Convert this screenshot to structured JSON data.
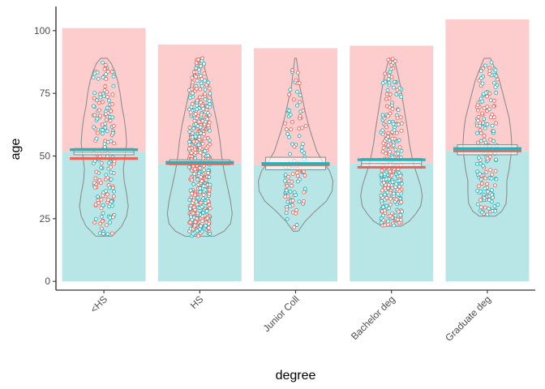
{
  "chart_data": {
    "type": "bar",
    "description_layers": [
      "stacked-bar",
      "violin",
      "jitter-points",
      "crossbar",
      "mean-lines"
    ],
    "xlabel": "degree",
    "ylabel": "age",
    "categories": [
      "<HS",
      "HS",
      "Junior Coll",
      "Bachelor deg",
      "Graduate deg"
    ],
    "ylim": [
      0,
      105
    ],
    "yticks": [
      0,
      25,
      50,
      75,
      100
    ],
    "grid": false,
    "legend": "none",
    "series": [
      {
        "key": "lower",
        "values": [
          51.5,
          47,
          46.5,
          47,
          52
        ],
        "color": "#b8e6e6"
      },
      {
        "key": "upper",
        "values": [
          49.5,
          47.5,
          46.5,
          47,
          52.5
        ],
        "color": "#fdcccc"
      }
    ],
    "totals": [
      101,
      94.5,
      93,
      94,
      104.5
    ],
    "crossbar": [
      {
        "low": 50.5,
        "mid": 51.5,
        "high": 53
      },
      {
        "low": 46.5,
        "mid": 47.2,
        "high": 48.5
      },
      {
        "low": 44.5,
        "mid": 46.5,
        "high": 49.5
      },
      {
        "low": 45.5,
        "mid": 47,
        "high": 49
      },
      {
        "low": 50.5,
        "mid": 52,
        "high": 54.5
      }
    ],
    "means": [
      {
        "teal": 52.5,
        "red": 49
      },
      {
        "teal": 47.5,
        "red": 47
      },
      {
        "teal": 47,
        "red": 46.5
      },
      {
        "teal": 48.5,
        "red": 45.5
      },
      {
        "teal": 53,
        "red": 52
      }
    ],
    "violin": [
      {
        "ymin": 18,
        "ymax": 89,
        "profile": [
          [
            18,
            10
          ],
          [
            22,
            22
          ],
          [
            26,
            28
          ],
          [
            30,
            30
          ],
          [
            35,
            28
          ],
          [
            40,
            25
          ],
          [
            45,
            24
          ],
          [
            50,
            26
          ],
          [
            55,
            28
          ],
          [
            60,
            27
          ],
          [
            65,
            25
          ],
          [
            70,
            22
          ],
          [
            75,
            20
          ],
          [
            80,
            17
          ],
          [
            84,
            13
          ],
          [
            87,
            9
          ],
          [
            89,
            4
          ]
        ]
      },
      {
        "ymin": 18,
        "ymax": 89,
        "profile": [
          [
            18,
            18
          ],
          [
            20,
            30
          ],
          [
            23,
            38
          ],
          [
            27,
            40
          ],
          [
            32,
            38
          ],
          [
            38,
            34
          ],
          [
            44,
            30
          ],
          [
            50,
            27
          ],
          [
            56,
            25
          ],
          [
            62,
            22
          ],
          [
            68,
            18
          ],
          [
            74,
            14
          ],
          [
            80,
            10
          ],
          [
            85,
            6
          ],
          [
            89,
            3
          ]
        ]
      },
      {
        "ymin": 20,
        "ymax": 89,
        "profile": [
          [
            20,
            3
          ],
          [
            24,
            12
          ],
          [
            28,
            24
          ],
          [
            32,
            38
          ],
          [
            36,
            45
          ],
          [
            40,
            46
          ],
          [
            44,
            42
          ],
          [
            48,
            33
          ],
          [
            52,
            26
          ],
          [
            56,
            22
          ],
          [
            60,
            18
          ],
          [
            66,
            13
          ],
          [
            72,
            9
          ],
          [
            78,
            5
          ],
          [
            84,
            3
          ],
          [
            89,
            1
          ]
        ]
      },
      {
        "ymin": 22,
        "ymax": 89,
        "profile": [
          [
            22,
            12
          ],
          [
            24,
            22
          ],
          [
            27,
            30
          ],
          [
            30,
            36
          ],
          [
            34,
            38
          ],
          [
            38,
            36
          ],
          [
            42,
            32
          ],
          [
            46,
            28
          ],
          [
            50,
            25
          ],
          [
            55,
            22
          ],
          [
            60,
            20
          ],
          [
            66,
            17
          ],
          [
            72,
            14
          ],
          [
            78,
            11
          ],
          [
            84,
            7
          ],
          [
            89,
            3
          ]
        ]
      },
      {
        "ymin": 26,
        "ymax": 89,
        "profile": [
          [
            26,
            10
          ],
          [
            28,
            18
          ],
          [
            31,
            23
          ],
          [
            35,
            24
          ],
          [
            40,
            24
          ],
          [
            45,
            27
          ],
          [
            50,
            29
          ],
          [
            55,
            30
          ],
          [
            60,
            29
          ],
          [
            65,
            27
          ],
          [
            70,
            23
          ],
          [
            75,
            19
          ],
          [
            80,
            15
          ],
          [
            85,
            9
          ],
          [
            89,
            4
          ]
        ]
      }
    ],
    "jitter_counts": [
      180,
      520,
      110,
      280,
      170
    ],
    "colors": {
      "teal": "#1fb5bb",
      "red": "#f0625a",
      "violin": "#8f8f8f",
      "axis": "#000000"
    }
  }
}
